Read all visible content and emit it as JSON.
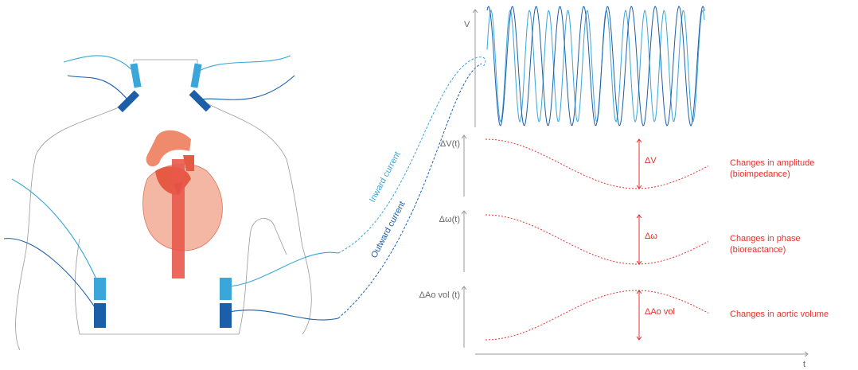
{
  "signal_panel": {
    "y_axis_label": "V",
    "x_axis_label": "t"
  },
  "currents": {
    "inward": "Inward current",
    "outward": "Outward current"
  },
  "tracks": [
    {
      "axis_label": "ΔV(t)",
      "delta_label": "ΔV",
      "description": [
        "Changes in amplitude",
        "(bioimpedance)"
      ]
    },
    {
      "axis_label": "Δω(t)",
      "delta_label": "Δω",
      "description": [
        "Changes in phase",
        "(bioreactance)"
      ]
    },
    {
      "axis_label": "ΔAo vol (t)",
      "delta_label": "ΔAo vol",
      "description": [
        "Changes in aortic volume"
      ]
    }
  ]
}
